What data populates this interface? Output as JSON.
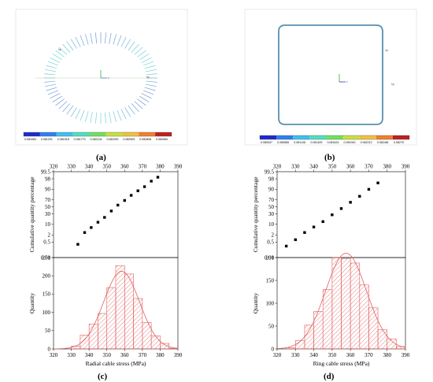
{
  "panels": {
    "a": {
      "label": "(a)",
      "colorbar_ticks": [
        "0.081063",
        "0.081291",
        "0.081518",
        "0.081770",
        "0.082134",
        "0.082290",
        "0.082553",
        "0.082808",
        "0.083060"
      ]
    },
    "b": {
      "label": "(b)",
      "colorbar_ticks": [
        "0.080547",
        "0.080856",
        "0.081136",
        "0.081409",
        "0.081624",
        "0.081943",
        "0.082212",
        "0.082481",
        "0.08275"
      ]
    },
    "c": {
      "label": "(c)"
    },
    "d": {
      "label": "(d)"
    },
    "colorbar_colors": [
      "#1f2bd0",
      "#2f7ff0",
      "#3fc0f0",
      "#4fe0c0",
      "#70e060",
      "#c8e040",
      "#f0c040",
      "#f08030",
      "#c02020"
    ]
  },
  "chart_data": [
    {
      "id": "c-probability",
      "type": "scatter",
      "ylabel": "Cumulative quantity percentage",
      "xlim": [
        320,
        390
      ],
      "x_ticks": [
        320,
        330,
        340,
        350,
        360,
        370,
        380,
        390
      ],
      "y_scale": "probability",
      "y_ticks": [
        "0.01",
        "0.5",
        "2",
        "10",
        "30",
        "50",
        "70",
        "90",
        "98",
        "99.5"
      ],
      "x": [
        333.7,
        337.5,
        341.2,
        345,
        348.7,
        352.5,
        356.2,
        360,
        363.7,
        367.5,
        371.2,
        375,
        378.7
      ],
      "y": [
        0.3,
        3,
        6.5,
        13,
        22,
        38,
        55,
        68,
        80,
        88,
        93,
        97,
        98.5
      ]
    },
    {
      "id": "c-histogram",
      "type": "bar",
      "xlabel": "Radial cable stress (MPa)",
      "ylabel": "Quantity",
      "xlim": [
        320,
        390
      ],
      "ylim": [
        0,
        250
      ],
      "x_ticks": [
        320,
        330,
        340,
        350,
        360,
        370,
        380,
        390
      ],
      "y_ticks": [
        0,
        50,
        100,
        150,
        200,
        250
      ],
      "bin_width": 5,
      "bin_starts": [
        330,
        335,
        340,
        345,
        350,
        355,
        360,
        365,
        370,
        375,
        380,
        385
      ],
      "values": [
        8,
        38,
        68,
        97,
        168,
        228,
        205,
        138,
        72,
        36,
        15,
        2
      ],
      "fit_curve": "normal"
    },
    {
      "id": "d-probability",
      "type": "scatter",
      "ylabel": "Cumulative quantity percentage",
      "xlim": [
        320,
        390
      ],
      "x_ticks": [
        320,
        330,
        340,
        350,
        360,
        370,
        380,
        390
      ],
      "y_scale": "probability",
      "y_ticks": [
        "0.01",
        "0.5",
        "2",
        "10",
        "30",
        "50",
        "70",
        "90",
        "98",
        "99.5"
      ],
      "x": [
        325,
        330,
        335,
        340,
        345,
        350,
        355,
        360,
        365,
        370,
        375
      ],
      "y": [
        0.2,
        0.8,
        3,
        7,
        14,
        28,
        45,
        63,
        78,
        90,
        96
      ]
    },
    {
      "id": "d-histogram",
      "type": "bar",
      "xlabel": "Ring cable stress (MPa)",
      "ylabel": "Quantity",
      "xlim": [
        320,
        390
      ],
      "ylim": [
        0,
        200
      ],
      "x_ticks": [
        320,
        330,
        340,
        350,
        360,
        370,
        380,
        390
      ],
      "y_ticks": [
        0,
        50,
        100,
        150,
        200
      ],
      "bin_width": 5,
      "bin_starts": [
        325,
        330,
        335,
        340,
        345,
        350,
        355,
        360,
        365,
        370,
        375,
        380,
        385
      ],
      "values": [
        3,
        18,
        52,
        82,
        130,
        200,
        198,
        188,
        140,
        90,
        42,
        22,
        5
      ],
      "fit_curve": "normal"
    }
  ]
}
